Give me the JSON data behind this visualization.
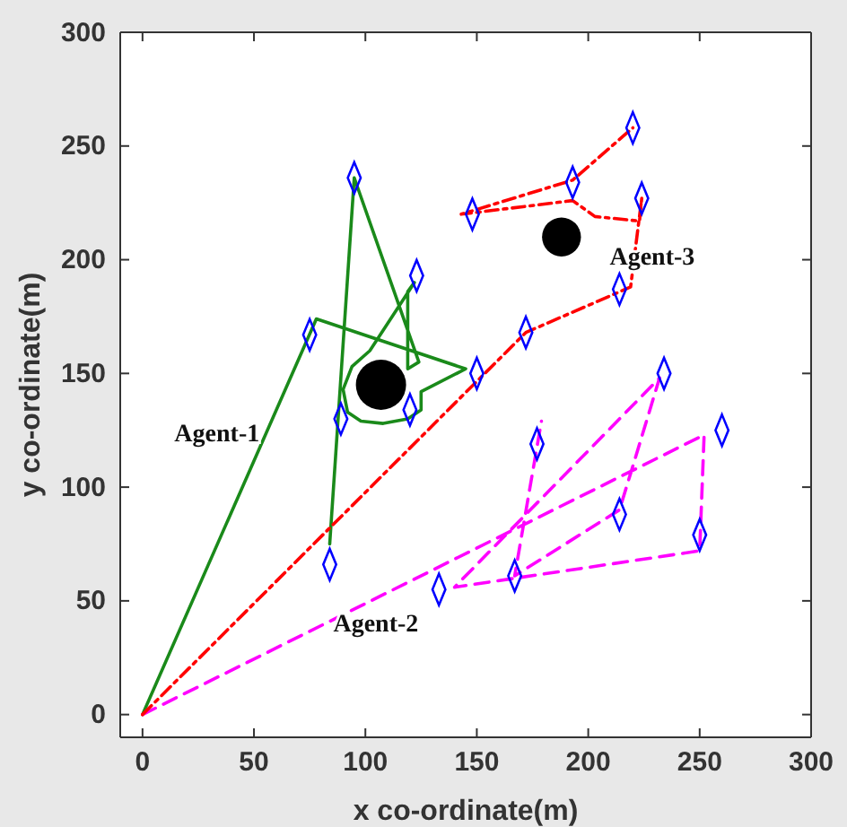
{
  "chart_data": {
    "type": "line",
    "xlabel": "x co-ordinate(m)",
    "ylabel": "y co-ordinate(m)",
    "xlim": [
      -10,
      300
    ],
    "ylim": [
      -10,
      300
    ],
    "xticks": [
      0,
      50,
      100,
      150,
      200,
      250,
      300
    ],
    "yticks": [
      0,
      50,
      100,
      150,
      200,
      250,
      300
    ],
    "grid": false,
    "series": [
      {
        "color": "#1a8a1a",
        "line_style": "solid",
        "marker": "none",
        "x": [
          0,
          78,
          145,
          125,
          125,
          119,
          108,
          98,
          92,
          90,
          94,
          102,
          122,
          119,
          119,
          124,
          95,
          84
        ],
        "values": [
          0,
          174,
          152,
          142,
          134,
          130,
          128,
          129,
          133,
          143,
          153,
          160,
          190,
          186,
          152,
          155,
          236,
          75
        ]
      },
      {
        "color": "#ff00ff",
        "line_style": "dashed",
        "marker": "none",
        "x": [
          0,
          252,
          250,
          140,
          232,
          219,
          214,
          167,
          179
        ],
        "values": [
          0,
          123,
          72,
          56,
          148,
          106,
          90,
          61,
          129
        ]
      },
      {
        "color": "#ff0000",
        "line_style": "dashdot",
        "marker": "none",
        "x": [
          0,
          172,
          219,
          224,
          223,
          203,
          193,
          143,
          193,
          220
        ],
        "values": [
          0,
          168,
          188,
          227,
          217,
          219,
          226,
          220,
          235,
          258
        ]
      },
      {
        "type": "scatter",
        "color": "#0000ff",
        "marker": "diamond",
        "x": [
          75,
          95,
          123,
          120,
          89,
          84,
          150,
          148,
          193,
          220,
          224,
          214,
          172,
          133,
          167,
          177,
          214,
          234,
          250,
          260
        ],
        "values": [
          167,
          236,
          193,
          134,
          130,
          66,
          150,
          220,
          234,
          258,
          227,
          187,
          168,
          55,
          61,
          119,
          88,
          150,
          79,
          125
        ]
      },
      {
        "type": "bubble",
        "color": "#000000",
        "x": [
          107,
          188
        ],
        "values": [
          145,
          210
        ],
        "sizes": [
          1,
          0.6
        ]
      }
    ],
    "annotations": [
      "Agent-1",
      "Agent-2",
      "Agent-3"
    ]
  }
}
